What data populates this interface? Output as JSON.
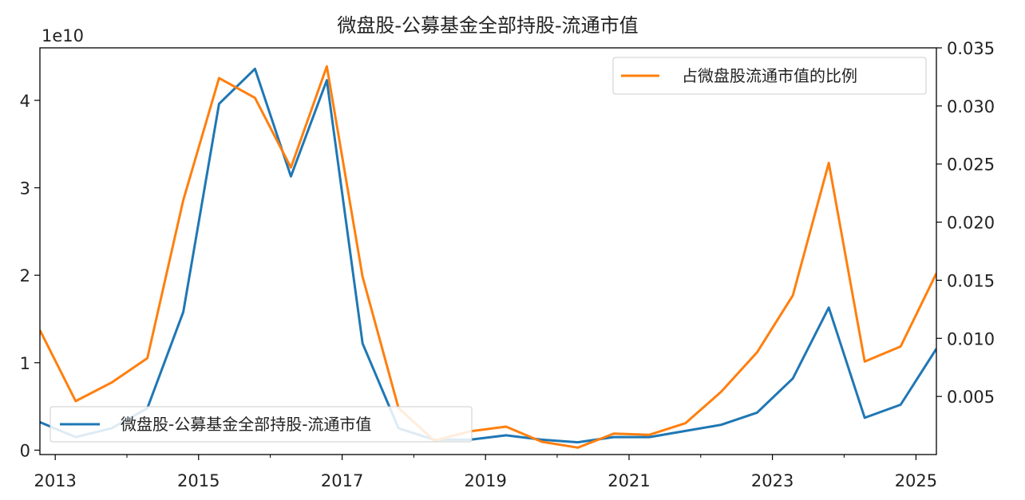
{
  "chart_data": {
    "type": "line",
    "title": "微盘股-公募基金全部持股-流通市值",
    "y_offset_label": "1e10",
    "x": [
      "2012-10-15",
      "2013-04-15",
      "2013-10-15",
      "2014-04-15",
      "2014-10-15",
      "2015-04-15",
      "2015-10-15",
      "2016-04-15",
      "2016-10-15",
      "2017-04-15",
      "2017-10-15",
      "2018-04-15",
      "2018-10-15",
      "2019-04-15",
      "2019-10-15",
      "2020-04-15",
      "2020-10-15",
      "2021-04-15",
      "2021-10-15",
      "2022-04-15",
      "2022-10-15",
      "2023-04-15",
      "2023-10-15",
      "2024-04-15",
      "2024-10-15",
      "2025-04-15"
    ],
    "xlim": [
      "2012-10-15",
      "2025-04-15"
    ],
    "x_ticks": [
      "2013",
      "2015",
      "2017",
      "2019",
      "2021",
      "2023",
      "2025"
    ],
    "series": [
      {
        "name": "微盘股-公募基金全部持股-流通市值",
        "axis": "left",
        "color": "#1f77b4",
        "values": [
          0.32,
          0.15,
          0.25,
          0.48,
          1.58,
          3.96,
          4.36,
          3.13,
          4.23,
          1.22,
          0.25,
          0.12,
          0.12,
          0.17,
          0.12,
          0.09,
          0.15,
          0.15,
          0.22,
          0.29,
          0.43,
          0.82,
          1.63,
          0.37,
          0.52,
          1.16
        ]
      },
      {
        "name": "占微盘股流通市值的比例",
        "axis": "right",
        "color": "#ff7f0e",
        "values": [
          0.0107,
          0.0046,
          0.0062,
          0.0083,
          0.0219,
          0.0324,
          0.0307,
          0.0247,
          0.0334,
          0.0153,
          0.004,
          0.0012,
          0.002,
          0.0024,
          0.0011,
          0.0006,
          0.0018,
          0.0017,
          0.0027,
          0.0054,
          0.0088,
          0.0137,
          0.0251,
          0.008,
          0.0093,
          0.0156
        ]
      }
    ],
    "y_left": {
      "lim": [
        -0.05,
        4.6
      ],
      "ticks": [
        0,
        1,
        2,
        3,
        4
      ],
      "tick_labels": [
        "0",
        "1",
        "2",
        "3",
        "4"
      ]
    },
    "y_right": {
      "lim": [
        0.0,
        0.035
      ],
      "ticks": [
        0.005,
        0.01,
        0.015,
        0.02,
        0.025,
        0.03,
        0.035
      ],
      "tick_labels": [
        "0.005",
        "0.010",
        "0.015",
        "0.020",
        "0.025",
        "0.030",
        "0.035"
      ]
    },
    "legend_left": {
      "label": "微盘股-公募基金全部持股-流通市值",
      "placement": "lower-left"
    },
    "legend_right": {
      "label": "占微盘股流通市值的比例",
      "placement": "upper-right"
    },
    "grid": false
  }
}
